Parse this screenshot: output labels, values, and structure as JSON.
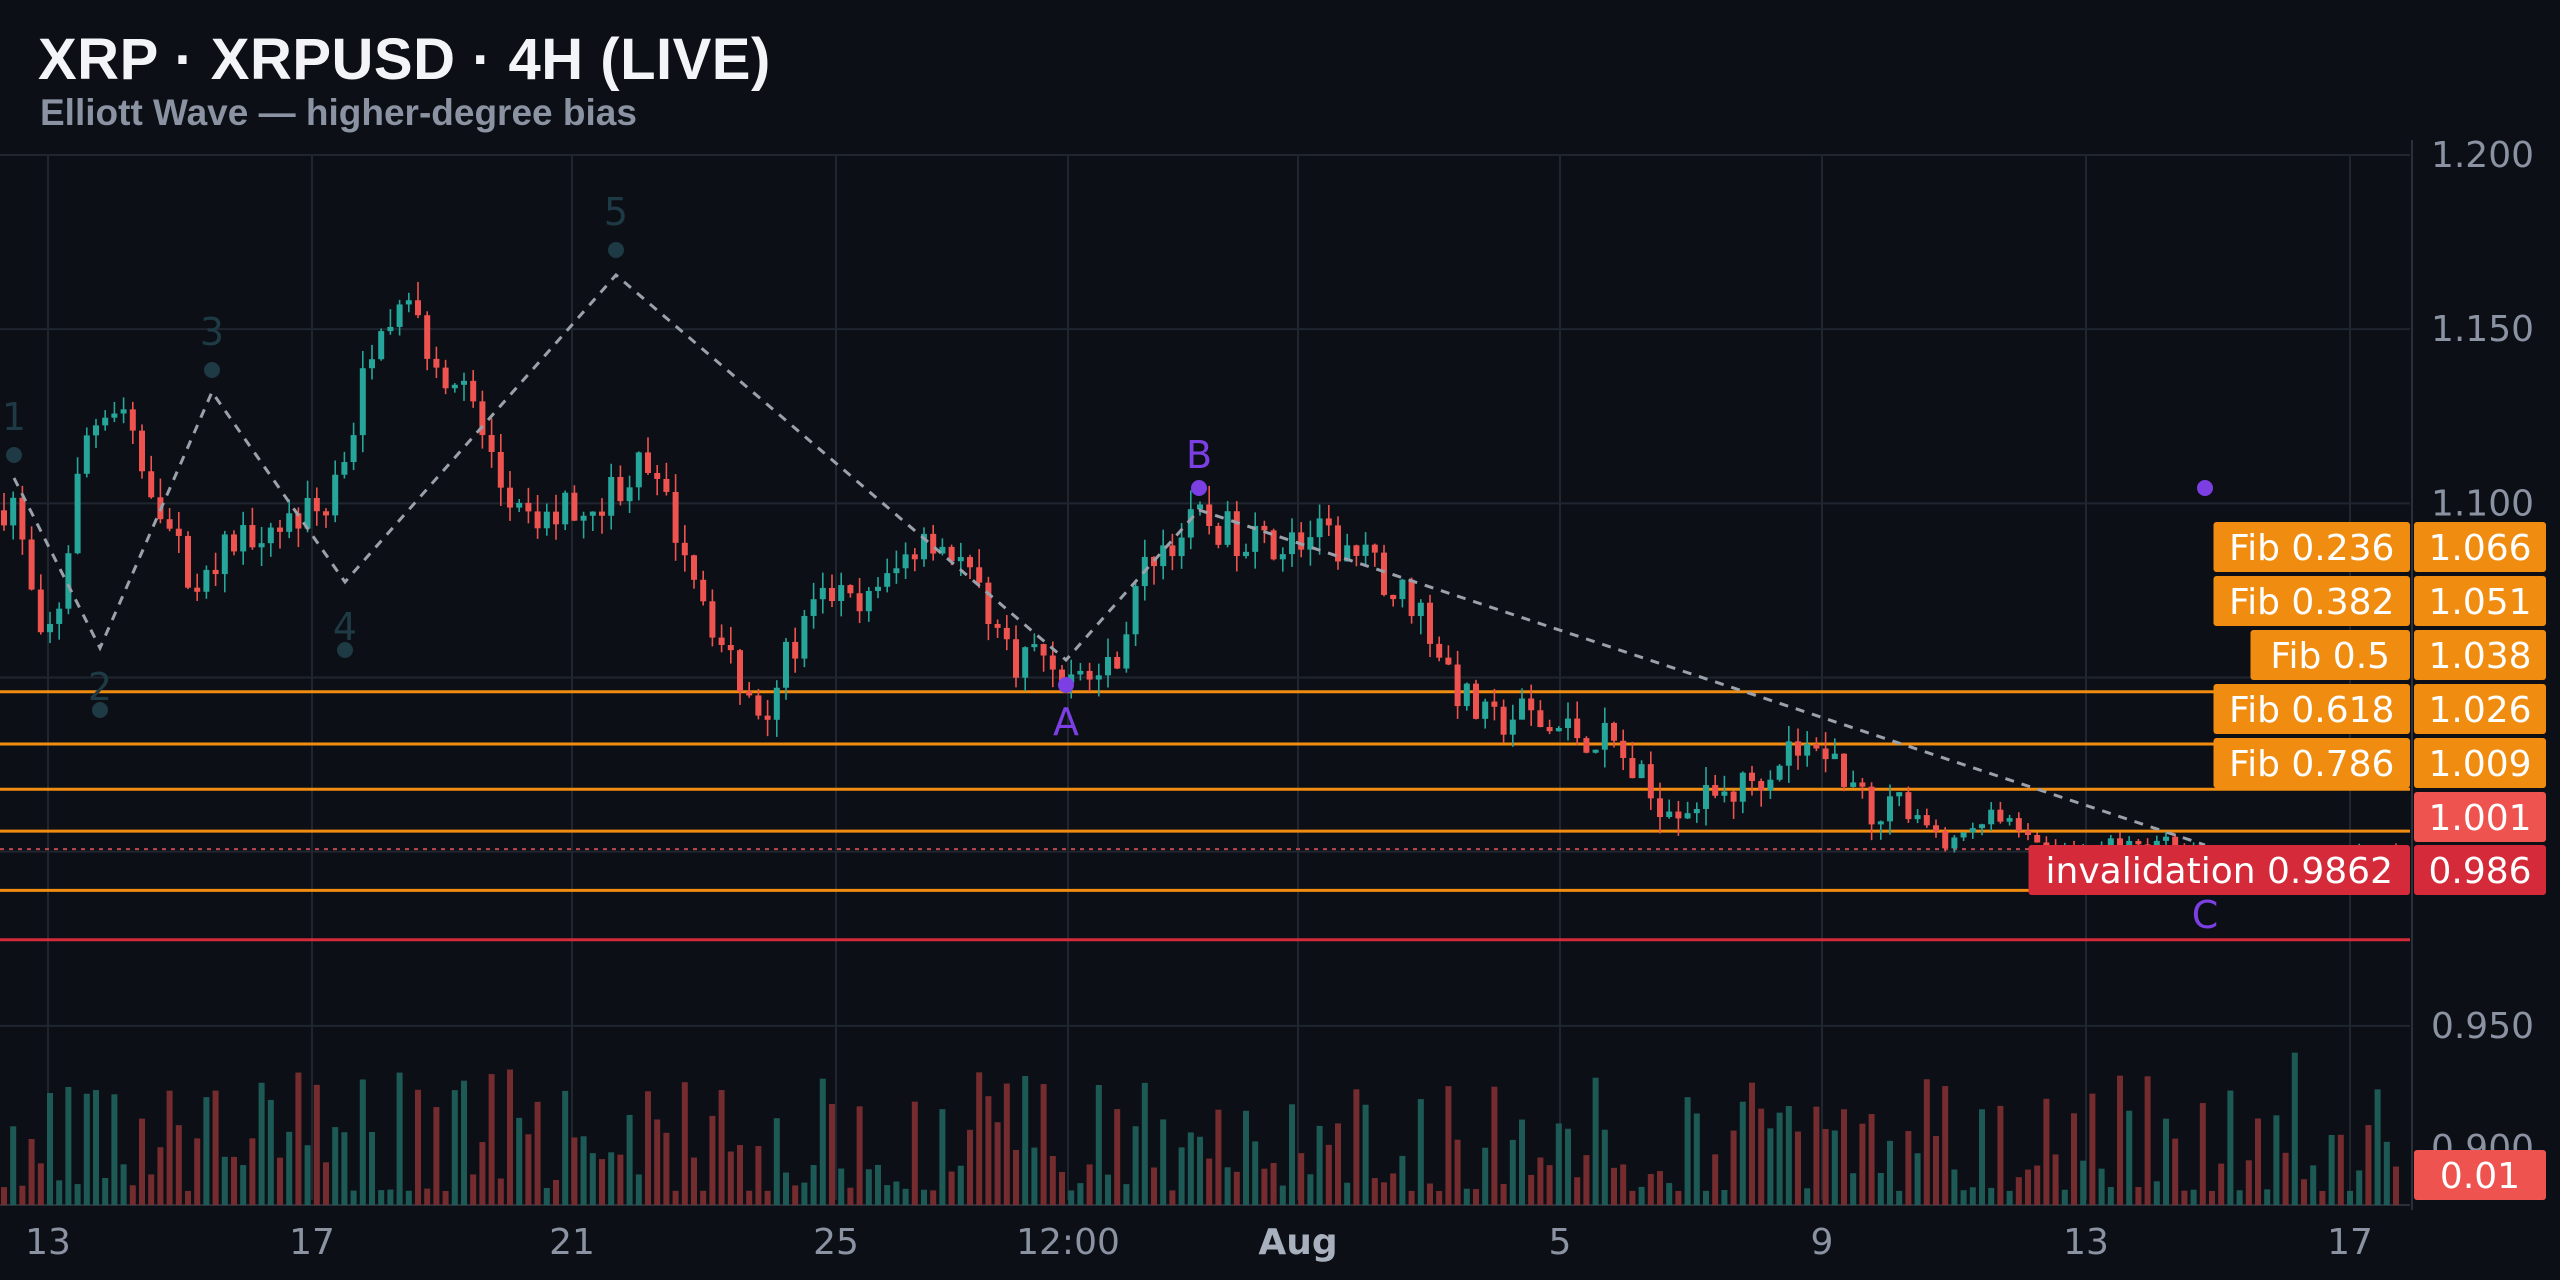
{
  "header": {
    "title": "XRP · XRPUSD · 4H (LIVE)",
    "subtitle": "Elliott Wave — higher-degree bias"
  },
  "colors": {
    "background": "#0c0f15",
    "grid": "#1f2630",
    "up": "#26a69a",
    "down": "#ef5350",
    "fib": "#f08c10",
    "invalidation": "#d42a3a",
    "wave_primary": "#7b3fe4",
    "wave_faded": "#1e3a44",
    "zigzag": "#9aa1ab"
  },
  "chart_data": {
    "type": "candlestick",
    "symbol": "XRPUSD",
    "timeframe": "4H",
    "price_ylim": [
      0.9,
      1.2
    ],
    "y_ticks": [
      "1.200",
      "1.150",
      "1.100",
      "0.950",
      "0.900"
    ],
    "x_ticks": [
      "13",
      "17",
      "21",
      "25",
      "12:00",
      "Aug",
      "5",
      "9",
      "13",
      "17"
    ],
    "fib_levels": [
      {
        "label": "Fib 0.236",
        "value": 1.066,
        "value_label": "1.066"
      },
      {
        "label": "Fib 0.382",
        "value": 1.051,
        "value_label": "1.051"
      },
      {
        "label": "Fib 0.5",
        "value": 1.038,
        "value_label": "1.038"
      },
      {
        "label": "Fib 0.618",
        "value": 1.026,
        "value_label": "1.026"
      },
      {
        "label": "Fib 0.786",
        "value": 1.009,
        "value_label": "1.009"
      }
    ],
    "invalidation": {
      "label": "invalidation 0.9862",
      "value": 0.9862,
      "value_label": "0.986"
    },
    "last_price": {
      "value": 1.001,
      "label": "1.001"
    },
    "volume_label": "0.01",
    "wave_points": [
      {
        "label": "1",
        "price": 1.103,
        "degree": "faded"
      },
      {
        "label": "2",
        "price": 1.053,
        "degree": "faded"
      },
      {
        "label": "3",
        "price": 1.13,
        "degree": "faded"
      },
      {
        "label": "4",
        "price": 1.07,
        "degree": "faded"
      },
      {
        "label": "5",
        "price": 1.165,
        "degree": "faded"
      },
      {
        "label": "A",
        "price": 1.04,
        "degree": "primary"
      },
      {
        "label": "B",
        "price": 1.095,
        "degree": "primary"
      },
      {
        "label": "C",
        "price": 0.985,
        "degree": "primary"
      }
    ]
  }
}
